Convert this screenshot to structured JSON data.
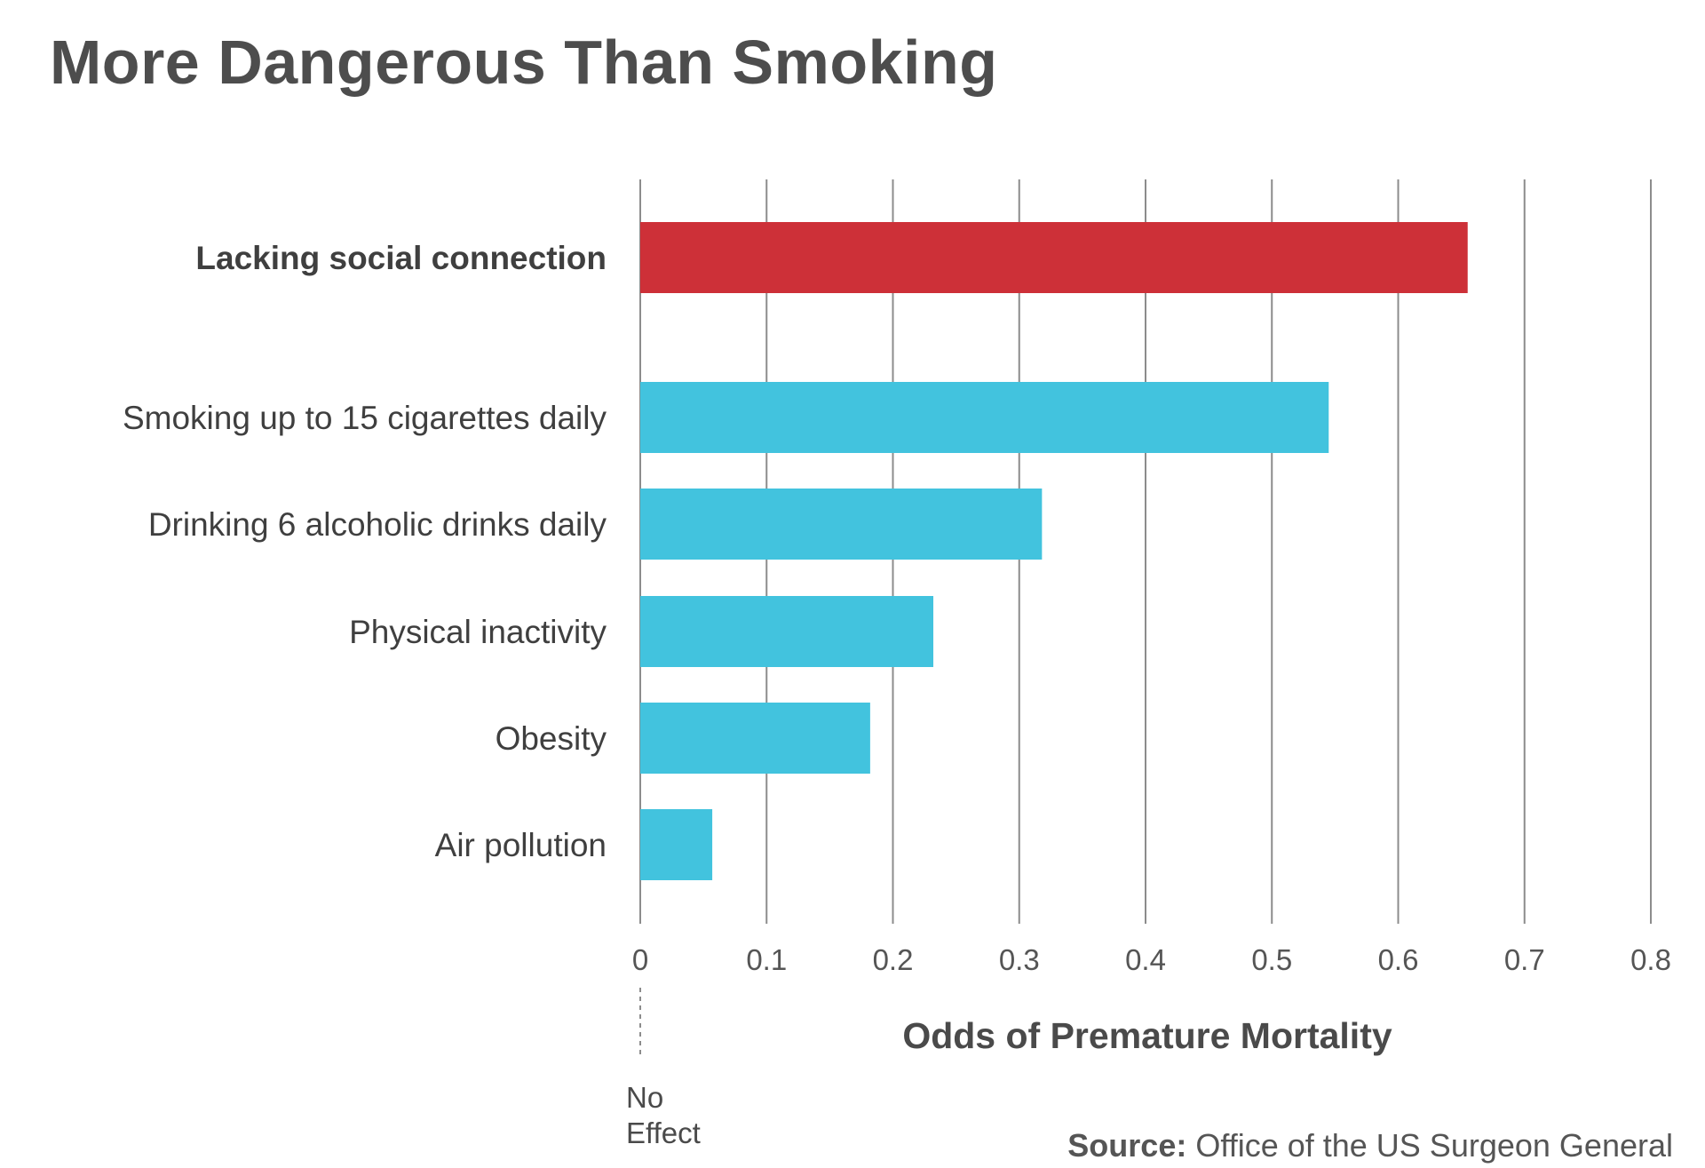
{
  "chart_data": {
    "type": "bar",
    "orientation": "horizontal",
    "title": "More Dangerous Than Smoking",
    "xlabel": "Odds of Premature Mortality",
    "ylabel": "",
    "xlim": [
      0,
      0.8
    ],
    "grid": true,
    "categories": [
      "Lacking social connection",
      "Smoking up to 15 cigarettes daily",
      "Drinking 6 alcoholic drinks daily",
      "Physical inactivity",
      "Obesity",
      "Air pollution"
    ],
    "values": [
      0.655,
      0.545,
      0.318,
      0.232,
      0.182,
      0.057
    ],
    "highlight_index": 0,
    "colors": {
      "highlight": "#cd3038",
      "default": "#42c3de",
      "grid": "#8c8c8c"
    },
    "ticks": [
      "0",
      "0.1",
      "0.2",
      "0.3",
      "0.4",
      "0.5",
      "0.6",
      "0.7",
      "0.8"
    ],
    "zero_note": [
      "No",
      "Effect"
    ],
    "source_label": "Source:",
    "source_text": "Office of the US Surgeon General"
  }
}
